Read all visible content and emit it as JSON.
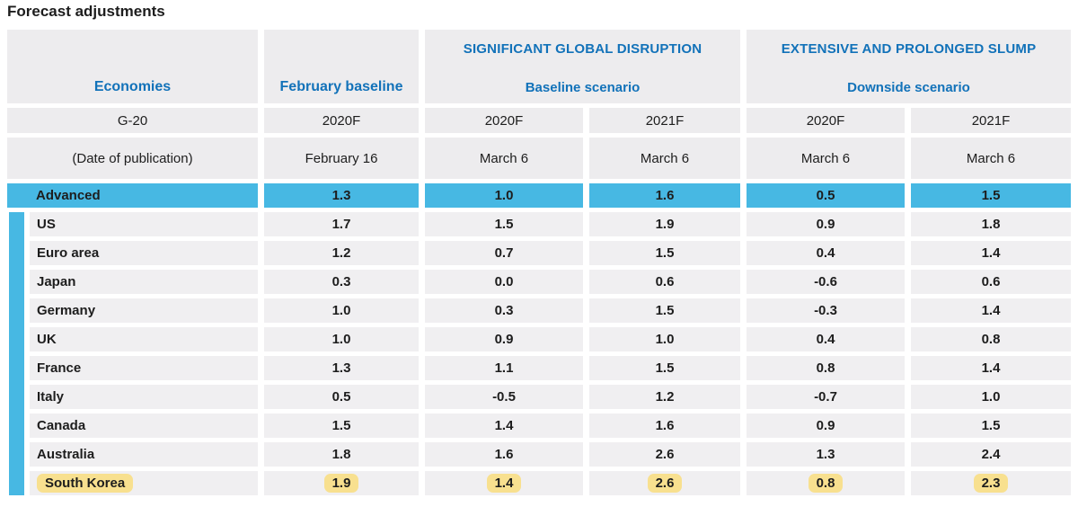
{
  "title": "Forecast adjustments",
  "colors": {
    "accent_blue": "#47b8e3",
    "header_text_blue": "#1272b9",
    "highlight_yellow": "#f8e08f",
    "cell_gray": "#f0eff1",
    "header_gray": "#edecee"
  },
  "chart_data": {
    "type": "table",
    "title": "Forecast adjustments",
    "row_headers": {
      "economies": "Economies",
      "g20": "G-20",
      "publication": "(Date of publication)"
    },
    "february_baseline_label": "February baseline",
    "groups": {
      "g1": {
        "title": "SIGNIFICANT GLOBAL DISRUPTION",
        "subtitle": "Baseline scenario"
      },
      "g2": {
        "title": "EXTENSIVE AND PROLONGED SLUMP",
        "subtitle": "Downside scenario"
      }
    },
    "years": [
      "2020F",
      "2020F",
      "2021F",
      "2020F",
      "2021F"
    ],
    "dates": [
      "February 16",
      "March 6",
      "March 6",
      "March 6",
      "March 6"
    ],
    "rows": [
      {
        "label": "Advanced",
        "emphasis": "blue",
        "values": [
          "1.3",
          "1.0",
          "1.6",
          "0.5",
          "1.5"
        ]
      },
      {
        "label": "US",
        "emphasis": "none",
        "values": [
          "1.7",
          "1.5",
          "1.9",
          "0.9",
          "1.8"
        ]
      },
      {
        "label": "Euro area",
        "emphasis": "none",
        "values": [
          "1.2",
          "0.7",
          "1.5",
          "0.4",
          "1.4"
        ]
      },
      {
        "label": "Japan",
        "emphasis": "none",
        "values": [
          "0.3",
          "0.0",
          "0.6",
          "-0.6",
          "0.6"
        ]
      },
      {
        "label": "Germany",
        "emphasis": "none",
        "values": [
          "1.0",
          "0.3",
          "1.5",
          "-0.3",
          "1.4"
        ]
      },
      {
        "label": "UK",
        "emphasis": "none",
        "values": [
          "1.0",
          "0.9",
          "1.0",
          "0.4",
          "0.8"
        ]
      },
      {
        "label": "France",
        "emphasis": "none",
        "values": [
          "1.3",
          "1.1",
          "1.5",
          "0.8",
          "1.4"
        ]
      },
      {
        "label": "Italy",
        "emphasis": "none",
        "values": [
          "0.5",
          "-0.5",
          "1.2",
          "-0.7",
          "1.0"
        ]
      },
      {
        "label": "Canada",
        "emphasis": "none",
        "values": [
          "1.5",
          "1.4",
          "1.6",
          "0.9",
          "1.5"
        ]
      },
      {
        "label": "Australia",
        "emphasis": "none",
        "values": [
          "1.8",
          "1.6",
          "2.6",
          "1.3",
          "2.4"
        ]
      },
      {
        "label": "South Korea",
        "emphasis": "yellow",
        "values": [
          "1.9",
          "1.4",
          "2.6",
          "0.8",
          "2.3"
        ]
      }
    ]
  }
}
